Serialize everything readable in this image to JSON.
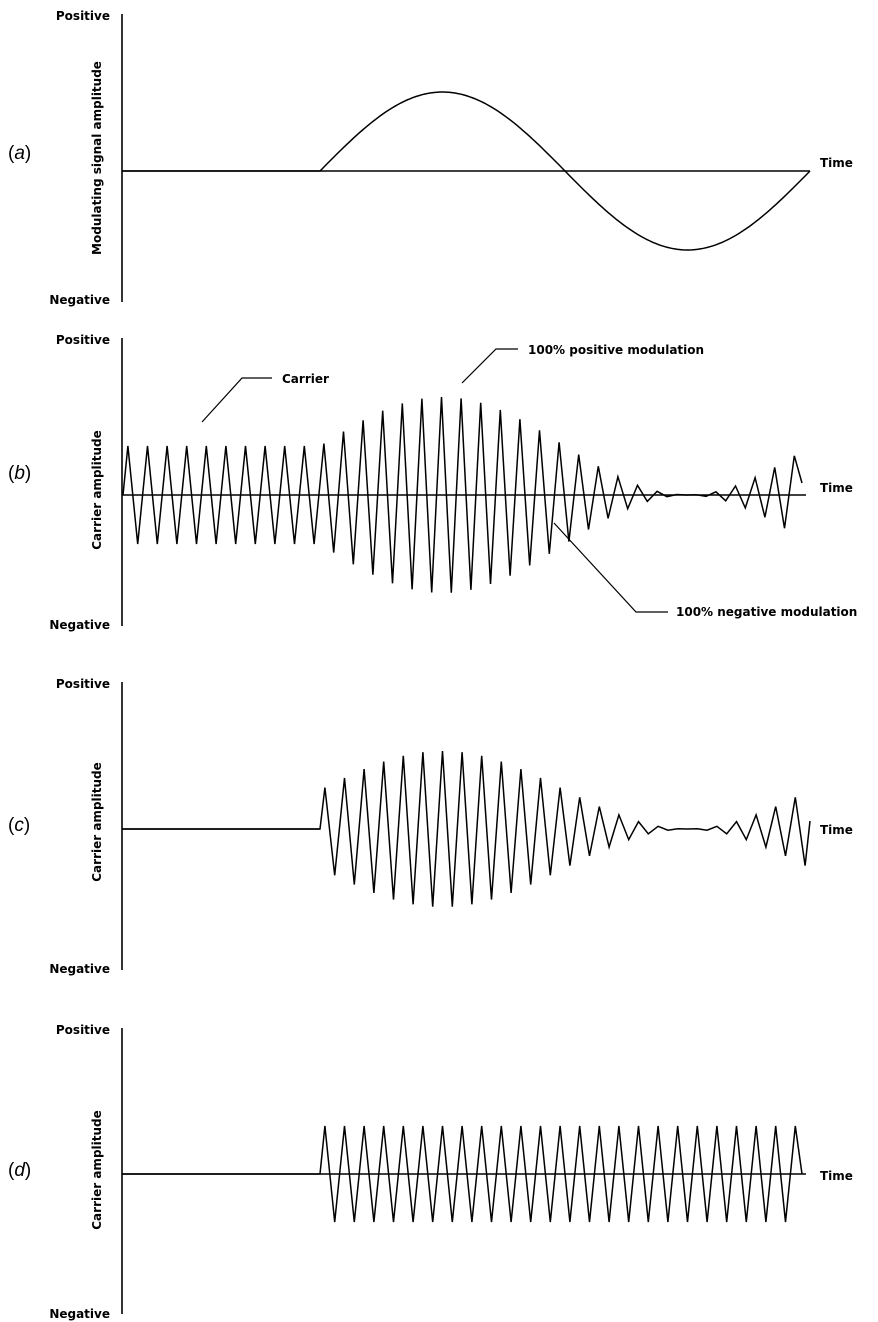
{
  "panels": [
    {
      "id": "a",
      "label_prefix": "(",
      "label_letter": "a",
      "label_suffix": ")",
      "y_positive": "Positive",
      "y_negative": "Negative",
      "ylabel": "Modulating signal amplitude",
      "xlabel": "Time",
      "signal": "modulating-sine"
    },
    {
      "id": "b",
      "label_prefix": "(",
      "label_letter": "b",
      "label_suffix": ")",
      "y_positive": "Positive",
      "y_negative": "Negative",
      "ylabel": "Carrier amplitude",
      "xlabel": "Time",
      "signal": "am-carrier-with-unmodulated-lead-in",
      "annotations": {
        "carrier": "Carrier",
        "positive": "100% positive modulation",
        "negative": "100% negative modulation"
      }
    },
    {
      "id": "c",
      "label_prefix": "(",
      "label_letter": "c",
      "label_suffix": ")",
      "y_positive": "Positive",
      "y_negative": "Negative",
      "ylabel": "Carrier amplitude",
      "xlabel": "Time",
      "signal": "am-carrier-starting-at-modulation"
    },
    {
      "id": "d",
      "label_prefix": "(",
      "label_letter": "d",
      "label_suffix": ")",
      "y_positive": "Positive",
      "y_negative": "Negative",
      "ylabel": "Carrier amplitude",
      "xlabel": "Time",
      "signal": "constant-carrier-starting-at-modulation"
    }
  ]
}
